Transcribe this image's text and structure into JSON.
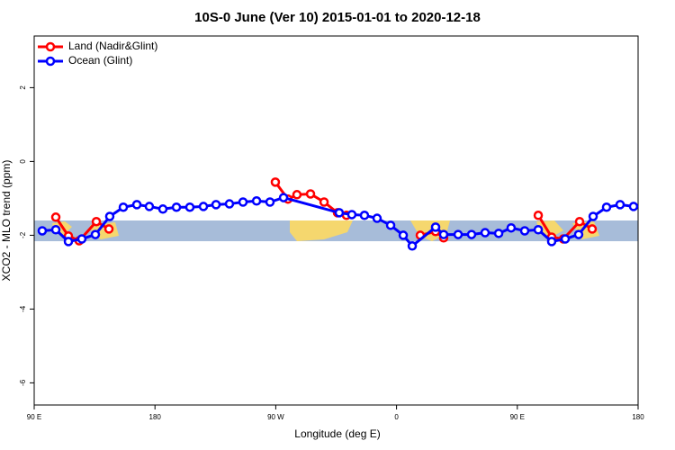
{
  "chart_data": {
    "type": "line",
    "title": "10S-0 June (Ver 10)   2015-01-01 to 2020-12-18",
    "x_label": "Longitude (deg E)",
    "y_label": "XCO2 - MLO trend (ppm)",
    "xlim": [
      90,
      540
    ],
    "ylim": [
      -6.6,
      3.4
    ],
    "xticks": [
      {
        "value": 90,
        "label": "90 E"
      },
      180,
      {
        "value": 270,
        "label": "90 W"
      },
      {
        "value": 360,
        "label": "0"
      },
      {
        "value": 450,
        "label": "90 E"
      },
      {
        "value": 540,
        "label": "180"
      }
    ],
    "yticks": [
      -6,
      -4,
      -2,
      0,
      2
    ],
    "legend": "top-left",
    "series": [
      {
        "name": "Land (Nadir&Glint)",
        "color": "#ff0000",
        "x": [
          106.1,
          115.5,
          123.5,
          136.3,
          145.7,
          200,
          269.7,
          279.1,
          285.8,
          295.9,
          306.0,
          316.0,
          322.7,
          350,
          377.7,
          389.1,
          395.1,
          430,
          465.6,
          475.6,
          484.3,
          496.4,
          505.8
        ],
        "values": [
          -1.51,
          -2.02,
          -2.15,
          -1.63,
          -1.83,
          null,
          -0.56,
          -1.02,
          -0.9,
          -0.88,
          -1.1,
          -1.39,
          -1.46,
          null,
          -2.0,
          -1.9,
          -2.07,
          null,
          -1.46,
          -2.05,
          -2.1,
          -1.63,
          -1.83
        ]
      },
      {
        "name": "Ocean (Glint)",
        "color": "#0000ff",
        "x": [
          96.0,
          106.1,
          115.5,
          125.5,
          135.6,
          146.3,
          156.4,
          166.5,
          175.8,
          185.9,
          196.0,
          206.0,
          216.1,
          225.5,
          235.5,
          245.6,
          255.7,
          265.7,
          275.8,
          317.3,
          326.7,
          336.1,
          345.5,
          355.6,
          365.0,
          371.7,
          389.1,
          395.1,
          405.9,
          415.9,
          426.0,
          436.1,
          445.4,
          455.5,
          465.6,
          475.6,
          485.7,
          495.7,
          506.5,
          516.5,
          526.6,
          536.6
        ],
        "values": [
          -1.88,
          -1.85,
          -2.17,
          -2.1,
          -1.98,
          -1.49,
          -1.24,
          -1.17,
          -1.22,
          -1.29,
          -1.24,
          -1.24,
          -1.22,
          -1.17,
          -1.15,
          -1.1,
          -1.07,
          -1.1,
          -0.98,
          -1.39,
          -1.44,
          -1.46,
          -1.54,
          -1.73,
          -2.0,
          -2.29,
          -1.78,
          -1.98,
          -1.98,
          -1.98,
          -1.93,
          -1.95,
          -1.8,
          -1.88,
          -1.85,
          -2.17,
          -2.1,
          -1.98,
          -1.49,
          -1.24,
          -1.17,
          -1.22
        ]
      }
    ]
  }
}
